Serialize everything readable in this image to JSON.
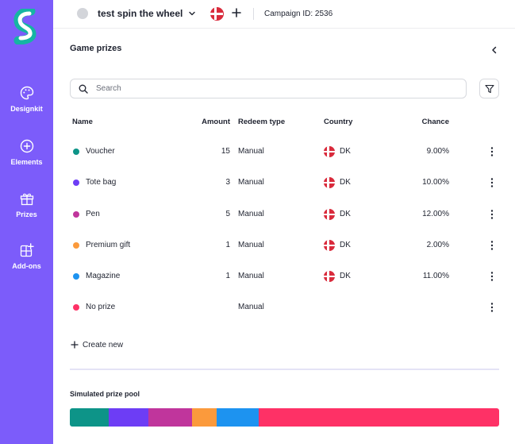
{
  "app": {
    "sidebar": {
      "items": [
        {
          "label": "Designkit",
          "icon": "palette-icon"
        },
        {
          "label": "Elements",
          "icon": "plus-circle-icon"
        },
        {
          "label": "Prizes",
          "icon": "gift-icon"
        },
        {
          "label": "Add-ons",
          "icon": "add-ons-icon"
        }
      ]
    },
    "header": {
      "campaign_name": "test spin the wheel",
      "language_flag": "denmark-flag-icon",
      "campaign_id": "Campaign ID: 2536"
    }
  },
  "panel": {
    "title": "Game prizes",
    "search": {
      "placeholder": "Search",
      "value": ""
    },
    "columns": {
      "name": "Name",
      "amount": "Amount",
      "redeem": "Redeem type",
      "country": "Country",
      "chance": "Chance"
    },
    "prizes": [
      {
        "name": "Voucher",
        "amount": "15",
        "redeem": "Manual",
        "country": "DK",
        "chance": "9.00%",
        "color": "#0d9488",
        "has_flag": true
      },
      {
        "name": "Tote bag",
        "amount": "3",
        "redeem": "Manual",
        "country": "DK",
        "chance": "10.00%",
        "color": "#6d3df5",
        "has_flag": true
      },
      {
        "name": "Pen",
        "amount": "5",
        "redeem": "Manual",
        "country": "DK",
        "chance": "12.00%",
        "color": "#c0359c",
        "has_flag": true
      },
      {
        "name": "Premium gift",
        "amount": "1",
        "redeem": "Manual",
        "country": "DK",
        "chance": "2.00%",
        "color": "#fb9a3c",
        "has_flag": true
      },
      {
        "name": "Magazine",
        "amount": "1",
        "redeem": "Manual",
        "country": "DK",
        "chance": "11.00%",
        "color": "#1d93f0",
        "has_flag": true
      },
      {
        "name": "No prize",
        "amount": "",
        "redeem": "Manual",
        "country": "",
        "chance": "",
        "color": "#fe3166",
        "has_flag": false
      }
    ],
    "create_new_label": "Create new",
    "pool": {
      "title": "Simulated prize pool",
      "segments": [
        {
          "prize": "Voucher",
          "color": "#0d9488",
          "share": 9
        },
        {
          "prize": "Tote bag",
          "color": "#6d3df5",
          "share": 9.3
        },
        {
          "prize": "Pen",
          "color": "#c0359c",
          "share": 10.2
        },
        {
          "prize": "Premium gift",
          "color": "#fb9a3c",
          "share": 5.7
        },
        {
          "prize": "Magazine",
          "color": "#1d93f0",
          "share": 9.8
        },
        {
          "prize": "No prize",
          "color": "#fe3166",
          "share": 56
        }
      ]
    }
  }
}
